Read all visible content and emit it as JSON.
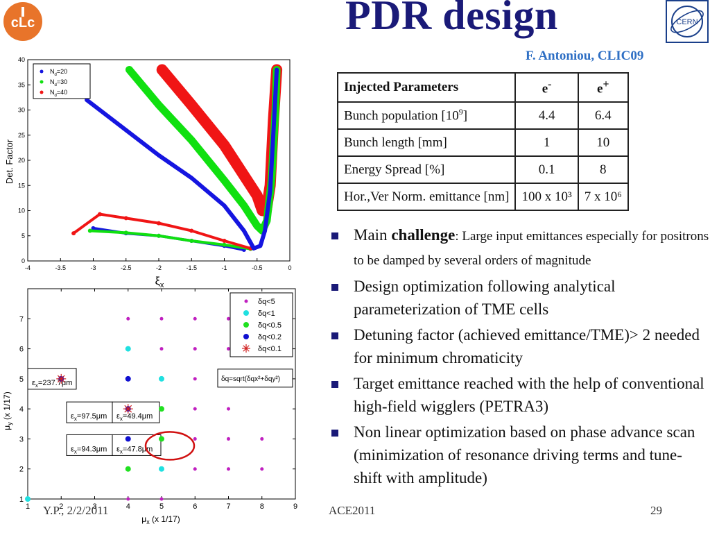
{
  "title": "PDR design",
  "author": "F. Antoniou, CLIC09",
  "logos": {
    "left": "clic-logo",
    "right": "cern-logo",
    "cern_text": "CERN"
  },
  "table": {
    "headers": [
      "Injected Parameters",
      "e-",
      "e+"
    ],
    "rows": [
      {
        "label": "Bunch population [10",
        "label_sup": "9",
        "label_tail": "]",
        "e_minus": "4.4",
        "e_plus": "6.4"
      },
      {
        "label": "Bunch length [mm]",
        "label_sup": "",
        "label_tail": "",
        "e_minus": "1",
        "e_plus": "10"
      },
      {
        "label": "Energy Spread [%]",
        "label_sup": "",
        "label_tail": "",
        "e_minus": "0.1",
        "e_plus": "8"
      },
      {
        "label": "Hor.,Ver Norm. emittance [nm]",
        "label_sup": "",
        "label_tail": "",
        "e_minus": "100 x 10³",
        "e_plus": "7 x 10⁶"
      }
    ]
  },
  "bullets": [
    {
      "pre": "Main ",
      "bold": "challenge",
      "post": ": Large input emittances especially for positrons to be damped by several orders of magnitude"
    },
    {
      "pre": "Design optimization following analytical parameterization of TME cells",
      "bold": "",
      "post": ""
    },
    {
      "pre": "Detuning factor (achieved emittance/TME)> 2 needed for minimum chromaticity",
      "bold": "",
      "post": ""
    },
    {
      "pre": "Target emittance reached with the help of conventional high-field wigglers (PETRA3)",
      "bold": "",
      "post": ""
    },
    {
      "pre": "Non linear optimization based on phase advance scan (minimization of resonance driving terms and tune-shift with amplitude)",
      "bold": "",
      "post": ""
    }
  ],
  "footer": {
    "left": "Y.P., 2/2/2011",
    "mid": "ACE2011",
    "right": "29"
  },
  "chart_data": [
    {
      "type": "scatter",
      "ylabel": "Det. Factor",
      "xlabel": "ξx",
      "xlim": [
        -4,
        0
      ],
      "ylim": [
        0,
        40
      ],
      "xticks": [
        "-4",
        "-3.5",
        "-3",
        "-2.5",
        "-2",
        "-1.5",
        "-1",
        "-0.5",
        "0"
      ],
      "yticks": [
        "0",
        "5",
        "10",
        "15",
        "20",
        "25",
        "30",
        "35",
        "40"
      ],
      "legend_position": "top-left",
      "series": [
        {
          "name": "Nd=20",
          "color": "#1515e0",
          "x": [
            -3.1,
            -2.5,
            -2.0,
            -1.5,
            -1.0,
            -0.7,
            -0.55,
            -0.45,
            -0.38,
            -0.3,
            -0.24,
            -0.2
          ],
          "y": [
            32,
            26,
            21,
            16.5,
            11,
            6,
            2.5,
            3,
            6,
            14,
            28,
            38
          ]
        },
        {
          "name": "Nd=30",
          "color": "#10e010",
          "x": [
            -2.45,
            -2.0,
            -1.5,
            -1.0,
            -0.7,
            -0.5,
            -0.42,
            -0.35,
            -0.28,
            -0.22,
            -0.2
          ],
          "y": [
            38,
            31,
            24,
            16,
            11,
            7,
            6,
            8,
            16,
            30,
            38
          ]
        },
        {
          "name": "Nd=40",
          "color": "#f01515",
          "x": [
            -1.95,
            -1.5,
            -1.0,
            -0.7,
            -0.5,
            -0.42,
            -0.36,
            -0.3,
            -0.25,
            -0.2
          ],
          "y": [
            38,
            31,
            23,
            17,
            13,
            10,
            10,
            15,
            28,
            38
          ]
        }
      ],
      "lower_branches": [
        {
          "color": "#1515e0",
          "x": [
            -3.0,
            -2.5,
            -2.0,
            -1.5,
            -1.0,
            -0.7
          ],
          "y": [
            6.5,
            5.5,
            5,
            4,
            3,
            2.2
          ]
        },
        {
          "color": "#10e010",
          "x": [
            -3.05,
            -2.5,
            -2.0,
            -1.5,
            -1.0,
            -0.6
          ],
          "y": [
            6,
            5.6,
            5,
            4,
            3.2,
            2.4
          ]
        },
        {
          "color": "#f01515",
          "x": [
            -3.3,
            -2.9,
            -2.5,
            -2.0,
            -1.5,
            -1.0,
            -0.6
          ],
          "y": [
            5.5,
            9.3,
            8.5,
            7.5,
            6,
            4,
            2.5
          ]
        }
      ]
    },
    {
      "type": "scatter",
      "xlabel": "μx (x 1/17)",
      "ylabel": "μy (x 1/17)",
      "xlim": [
        1,
        9
      ],
      "ylim": [
        1,
        8
      ],
      "xticks": [
        "1",
        "2",
        "3",
        "4",
        "5",
        "6",
        "7",
        "8",
        "9"
      ],
      "yticks": [
        "1",
        "2",
        "3",
        "4",
        "5",
        "6",
        "7"
      ],
      "legend_position": "top-right",
      "legend": [
        "δq<5",
        "δq<1",
        "δq<0.5",
        "δq<0.2",
        "δq<0.1"
      ],
      "formula": "δq=sqrt(δqx²+δqy²)",
      "points": [
        {
          "x": 4,
          "y": 7,
          "color": "#c020c0"
        },
        {
          "x": 5,
          "y": 7,
          "color": "#c020c0"
        },
        {
          "x": 6,
          "y": 7,
          "color": "#c020c0"
        },
        {
          "x": 7,
          "y": 7,
          "color": "#c020c0"
        },
        {
          "x": 4,
          "y": 6,
          "color": "#20e0e0"
        },
        {
          "x": 5,
          "y": 6,
          "color": "#c020c0"
        },
        {
          "x": 6,
          "y": 6,
          "color": "#c020c0"
        },
        {
          "x": 7,
          "y": 6,
          "color": "#c020c0"
        },
        {
          "x": 2,
          "y": 5,
          "color": "#1010d0"
        },
        {
          "x": 4,
          "y": 5,
          "color": "#1010d0"
        },
        {
          "x": 5,
          "y": 5,
          "color": "#20e0e0"
        },
        {
          "x": 6,
          "y": 5,
          "color": "#c020c0"
        },
        {
          "x": 4,
          "y": 4,
          "color": "#1010d0"
        },
        {
          "x": 5,
          "y": 4,
          "color": "#20e020"
        },
        {
          "x": 6,
          "y": 4,
          "color": "#c020c0"
        },
        {
          "x": 7,
          "y": 4,
          "color": "#c020c0"
        },
        {
          "x": 4,
          "y": 3,
          "color": "#1010d0"
        },
        {
          "x": 5,
          "y": 3,
          "color": "#20e020"
        },
        {
          "x": 6,
          "y": 3,
          "color": "#c020c0"
        },
        {
          "x": 7,
          "y": 3,
          "color": "#c020c0"
        },
        {
          "x": 8,
          "y": 3,
          "color": "#c020c0"
        },
        {
          "x": 4,
          "y": 2,
          "color": "#20e020"
        },
        {
          "x": 5,
          "y": 2,
          "color": "#20e0e0"
        },
        {
          "x": 6,
          "y": 2,
          "color": "#c020c0"
        },
        {
          "x": 7,
          "y": 2,
          "color": "#c020c0"
        },
        {
          "x": 8,
          "y": 2,
          "color": "#c020c0"
        },
        {
          "x": 1,
          "y": 1,
          "color": "#20e0e0"
        },
        {
          "x": 4,
          "y": 1,
          "color": "#c020c0"
        },
        {
          "x": 5,
          "y": 1,
          "color": "#c020c0"
        }
      ],
      "stars": [
        {
          "x": 2,
          "y": 5
        },
        {
          "x": 4,
          "y": 4
        }
      ],
      "annotations": [
        "εx=237.7μm",
        "εx=97.5μm",
        "εx=49.4μm",
        "εx=94.3μm",
        "εx=47.8μm"
      ],
      "highlight": "εx=47.8μm"
    }
  ]
}
